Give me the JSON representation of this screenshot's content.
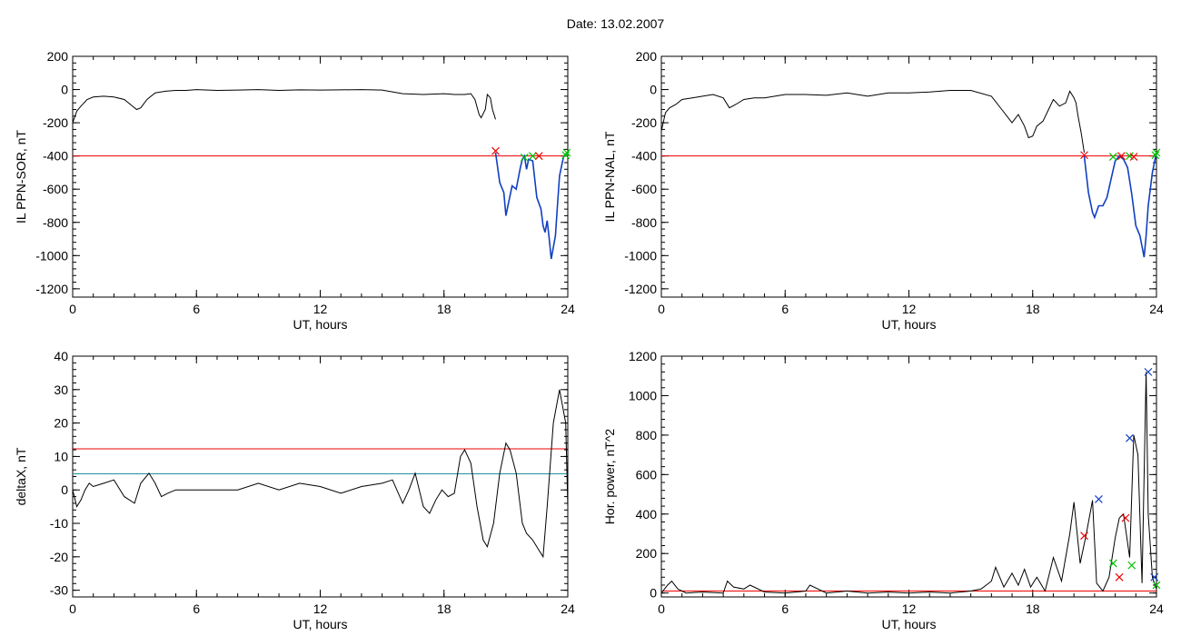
{
  "title": "Date:  13.02.2007",
  "colors": {
    "black": "#000000",
    "red": "#ee0000",
    "blue": "#1040c0",
    "green": "#00c000",
    "cyan": "#2090a0"
  },
  "chart_data": [
    {
      "id": "tl",
      "type": "line",
      "title": "",
      "xlabel": "UT, hours",
      "ylabel": "IL PPN-SOR, nT",
      "xlim": [
        0,
        24
      ],
      "ylim": [
        -1250,
        200
      ],
      "xticks": [
        "0",
        "6",
        "12",
        "18",
        "24"
      ],
      "yticks": [
        "200",
        "0",
        "-200",
        "-400",
        "-600",
        "-800",
        "-1000",
        "-1200"
      ],
      "series": [
        {
          "color": "#000000",
          "x": [
            0,
            0.2,
            0.4,
            0.7,
            1.0,
            1.5,
            2.0,
            2.5,
            2.8,
            3.1,
            3.3,
            3.6,
            4.0,
            4.5,
            5.0,
            5.5,
            6,
            7,
            8,
            9,
            10,
            11,
            12,
            13,
            14,
            15,
            16,
            17,
            18,
            18.5,
            19,
            19.3,
            19.5,
            19.7,
            19.8,
            20.0,
            20.1,
            20.25,
            20.35,
            20.5
          ],
          "y": [
            -200,
            -130,
            -100,
            -60,
            -45,
            -40,
            -45,
            -60,
            -90,
            -120,
            -110,
            -60,
            -20,
            -10,
            -5,
            -5,
            0,
            -5,
            -3,
            0,
            -5,
            -2,
            -3,
            -2,
            0,
            -3,
            -25,
            -30,
            -25,
            -30,
            -30,
            -25,
            -60,
            -150,
            -170,
            -120,
            -30,
            -50,
            -120,
            -180
          ]
        },
        {
          "color": "#1040c0",
          "x": [
            20.5,
            20.7,
            20.9,
            21.0,
            21.1,
            21.3,
            21.5,
            21.7,
            21.8,
            21.9,
            22.0,
            22.1,
            22.3,
            22.5,
            22.7,
            22.8,
            22.9,
            23.0,
            23.1,
            23.2,
            23.4,
            23.5,
            23.6,
            23.8,
            24.0
          ],
          "y": [
            -380,
            -560,
            -620,
            -760,
            -700,
            -580,
            -600,
            -470,
            -420,
            -400,
            -480,
            -420,
            -430,
            -650,
            -720,
            -820,
            -860,
            -790,
            -900,
            -1020,
            -880,
            -700,
            -520,
            -400,
            -380
          ]
        }
      ],
      "hlines": [
        {
          "y": -400,
          "color": "#ee0000"
        }
      ],
      "markers": [
        {
          "x": 20.5,
          "y": -370,
          "color": "#ee0000"
        },
        {
          "x": 21.9,
          "y": -410,
          "color": "#00c000"
        },
        {
          "x": 22.3,
          "y": -400,
          "color": "#00c000"
        },
        {
          "x": 22.6,
          "y": -400,
          "color": "#ee0000"
        },
        {
          "x": 23.9,
          "y": -395,
          "color": "#00c000"
        },
        {
          "x": 23.95,
          "y": -380,
          "color": "#00c000"
        }
      ]
    },
    {
      "id": "tr",
      "type": "line",
      "title": "",
      "xlabel": "UT, hours",
      "ylabel": "IL PPN-NAL, nT",
      "xlim": [
        0,
        24
      ],
      "ylim": [
        -1250,
        200
      ],
      "xticks": [
        "0",
        "6",
        "12",
        "18",
        "24"
      ],
      "yticks": [
        "200",
        "0",
        "-200",
        "-400",
        "-600",
        "-800",
        "-1000",
        "-1200"
      ],
      "series": [
        {
          "color": "#000000",
          "x": [
            0,
            0.2,
            0.4,
            0.7,
            1.0,
            1.5,
            2.0,
            2.5,
            3.0,
            3.3,
            3.6,
            4.0,
            4.5,
            5,
            6,
            7,
            8,
            9,
            10,
            11,
            12,
            13,
            14,
            15,
            16,
            16.5,
            17,
            17.3,
            17.6,
            17.8,
            18.0,
            18.2,
            18.5,
            19,
            19.3,
            19.6,
            19.8,
            20.0,
            20.1,
            20.2,
            20.35,
            20.5
          ],
          "y": [
            -250,
            -140,
            -110,
            -90,
            -60,
            -50,
            -40,
            -30,
            -50,
            -110,
            -90,
            -60,
            -50,
            -50,
            -30,
            -30,
            -35,
            -20,
            -40,
            -20,
            -20,
            -15,
            -5,
            -5,
            -40,
            -120,
            -200,
            -150,
            -220,
            -290,
            -280,
            -220,
            -190,
            -60,
            -100,
            -80,
            -10,
            -50,
            -80,
            -160,
            -260,
            -380
          ]
        },
        {
          "color": "#1040c0",
          "x": [
            20.5,
            20.7,
            20.9,
            21.0,
            21.2,
            21.4,
            21.6,
            21.8,
            22.0,
            22.2,
            22.4,
            22.6,
            22.8,
            23.0,
            23.2,
            23.4,
            23.5,
            23.6,
            23.8,
            24.0
          ],
          "y": [
            -400,
            -620,
            -740,
            -770,
            -700,
            -700,
            -650,
            -540,
            -430,
            -400,
            -420,
            -470,
            -630,
            -820,
            -880,
            -1010,
            -880,
            -700,
            -500,
            -380
          ]
        }
      ],
      "hlines": [
        {
          "y": -400,
          "color": "#ee0000"
        }
      ],
      "markers": [
        {
          "x": 20.5,
          "y": -395,
          "color": "#ee0000"
        },
        {
          "x": 21.9,
          "y": -405,
          "color": "#00c000"
        },
        {
          "x": 22.3,
          "y": -400,
          "color": "#ee0000"
        },
        {
          "x": 22.7,
          "y": -400,
          "color": "#00c000"
        },
        {
          "x": 22.9,
          "y": -405,
          "color": "#ee0000"
        },
        {
          "x": 23.95,
          "y": -395,
          "color": "#00c000"
        },
        {
          "x": 24.0,
          "y": -380,
          "color": "#00c000"
        }
      ]
    },
    {
      "id": "bl",
      "type": "line",
      "title": "",
      "xlabel": "UT, hours",
      "ylabel": "deltaX, nT",
      "xlim": [
        0,
        24
      ],
      "ylim": [
        -32,
        40
      ],
      "xticks": [
        "0",
        "6",
        "12",
        "18",
        "24"
      ],
      "yticks": [
        "40",
        "30",
        "20",
        "10",
        "0",
        "-10",
        "-20",
        "-30"
      ],
      "series": [
        {
          "color": "#000000",
          "x": [
            0,
            0.2,
            0.4,
            0.6,
            0.8,
            1.0,
            1.5,
            2.0,
            2.5,
            3.0,
            3.3,
            3.7,
            4.0,
            4.3,
            4.6,
            5,
            6,
            7,
            8,
            9,
            10,
            11,
            12,
            13,
            14,
            15,
            15.5,
            16,
            16.3,
            16.6,
            17,
            17.3,
            17.6,
            17.9,
            18.2,
            18.5,
            18.8,
            19.0,
            19.3,
            19.6,
            19.9,
            20.1,
            20.4,
            20.7,
            21.0,
            21.2,
            21.5,
            21.8,
            22.0,
            22.3,
            22.6,
            22.8,
            23.0,
            23.3,
            23.6,
            23.9,
            24.0
          ],
          "y": [
            0,
            -5,
            -3,
            0,
            2,
            1,
            2,
            3,
            -2,
            -4,
            2,
            5,
            2,
            -2,
            -1,
            0,
            0,
            0,
            0,
            2,
            0,
            2,
            1,
            -1,
            1,
            2,
            3,
            -4,
            0,
            5,
            -5,
            -7,
            -3,
            0,
            -2,
            -1,
            10,
            12,
            8,
            -5,
            -15,
            -17,
            -10,
            5,
            14,
            12,
            5,
            -10,
            -13,
            -15,
            -18,
            -20,
            -5,
            20,
            30,
            20,
            -5
          ]
        }
      ],
      "hlines": [
        {
          "y": 12.3,
          "color": "#ee0000"
        },
        {
          "y": 4.8,
          "color": "#2090a0"
        }
      ],
      "markers": []
    },
    {
      "id": "br",
      "type": "line",
      "title": "",
      "xlabel": "UT, hours",
      "ylabel": "Hor. power, nT^2",
      "xlim": [
        0,
        24
      ],
      "ylim": [
        -20,
        1200
      ],
      "xticks": [
        "0",
        "6",
        "12",
        "18",
        "24"
      ],
      "yticks": [
        "1200",
        "1000",
        "800",
        "600",
        "400",
        "200",
        "0"
      ],
      "series": [
        {
          "color": "#000000",
          "x": [
            0,
            0.3,
            0.5,
            0.8,
            1.2,
            2,
            3,
            3.2,
            3.5,
            4,
            4.3,
            5,
            6,
            7,
            7.2,
            8,
            9,
            10,
            11,
            12,
            13,
            14,
            15,
            15.5,
            16.0,
            16.2,
            16.6,
            17.0,
            17.3,
            17.6,
            17.9,
            18.2,
            18.6,
            19.0,
            19.4,
            19.8,
            20.0,
            20.3,
            20.6,
            20.9,
            21.1,
            21.4,
            21.7,
            22.0,
            22.2,
            22.4,
            22.7,
            22.9,
            23.1,
            23.3,
            23.5,
            23.6,
            23.8,
            24.0
          ],
          "y": [
            0,
            40,
            60,
            20,
            0,
            5,
            0,
            60,
            30,
            20,
            40,
            5,
            0,
            10,
            40,
            0,
            10,
            0,
            5,
            0,
            5,
            0,
            10,
            20,
            60,
            130,
            30,
            100,
            40,
            120,
            30,
            80,
            10,
            180,
            60,
            300,
            460,
            150,
            300,
            470,
            50,
            10,
            80,
            280,
            380,
            400,
            180,
            800,
            700,
            50,
            1120,
            400,
            80,
            20
          ]
        }
      ],
      "hlines": [
        {
          "y": 10,
          "color": "#ee0000"
        }
      ],
      "markers": [
        {
          "x": 20.5,
          "y": 290,
          "color": "#ee0000"
        },
        {
          "x": 21.2,
          "y": 475,
          "color": "#1040c0"
        },
        {
          "x": 21.9,
          "y": 150,
          "color": "#00c000"
        },
        {
          "x": 22.2,
          "y": 80,
          "color": "#ee0000"
        },
        {
          "x": 22.5,
          "y": 380,
          "color": "#ee0000"
        },
        {
          "x": 22.7,
          "y": 785,
          "color": "#1040c0"
        },
        {
          "x": 22.8,
          "y": 140,
          "color": "#00c000"
        },
        {
          "x": 23.6,
          "y": 1120,
          "color": "#1040c0"
        },
        {
          "x": 23.9,
          "y": 80,
          "color": "#1040c0"
        },
        {
          "x": 24.0,
          "y": 40,
          "color": "#00c000"
        }
      ]
    }
  ]
}
